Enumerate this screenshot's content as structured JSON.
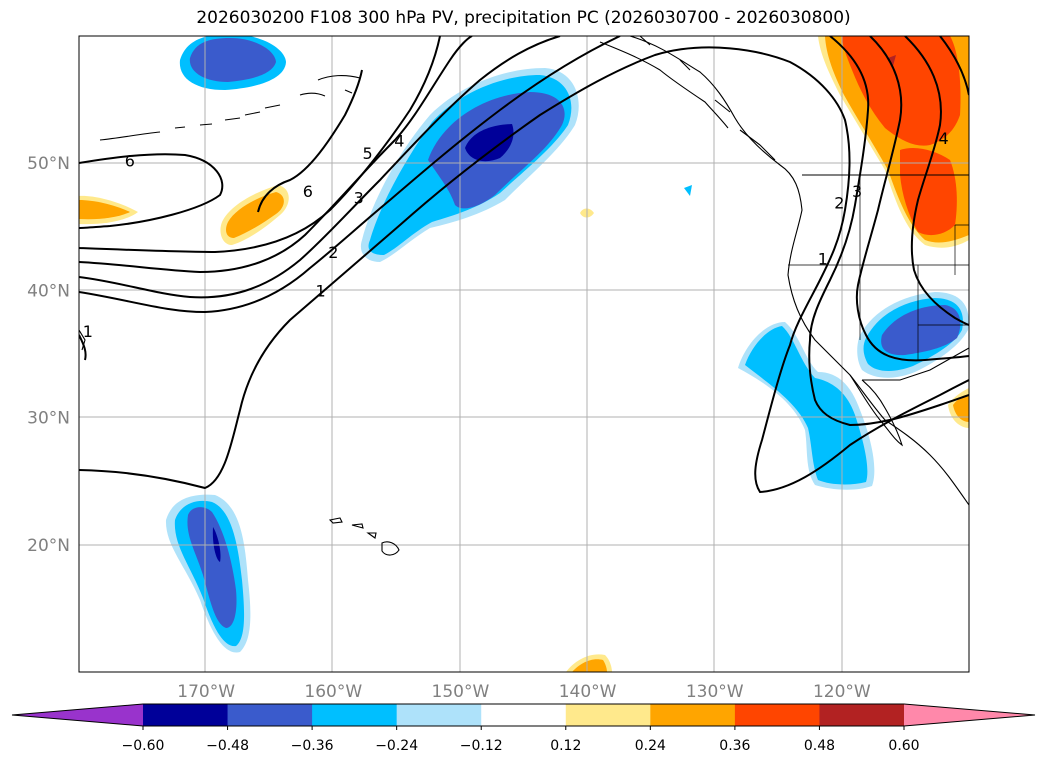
{
  "title": "2026030200 F108 300 hPa PV, precipitation PC (2026030700 - 2026030800)",
  "map": {
    "lon_range": [
      -180,
      -110
    ],
    "lat_range": [
      10,
      60
    ],
    "lon_labels": [
      "170°W",
      "160°W",
      "150°W",
      "140°W",
      "130°W",
      "120°W"
    ],
    "lat_labels": [
      "50°N",
      "40°N",
      "30°N",
      "20°N"
    ],
    "gridlines": true
  },
  "pv_contour_labels": [
    {
      "text": "6",
      "lon": -176,
      "lat": 50.2
    },
    {
      "text": "6",
      "lon": -162,
      "lat": 47.8
    },
    {
      "text": "5",
      "lon": -157.3,
      "lat": 50.8
    },
    {
      "text": "4",
      "lon": -154.8,
      "lat": 51.8
    },
    {
      "text": "3",
      "lon": -158,
      "lat": 47.3
    },
    {
      "text": "2",
      "lon": -160,
      "lat": 43
    },
    {
      "text": "1",
      "lon": -161,
      "lat": 40
    },
    {
      "text": "1",
      "lon": -179.3,
      "lat": 36.8
    },
    {
      "text": "1",
      "lon": -121.5,
      "lat": 42.5
    },
    {
      "text": "2",
      "lon": -120.2,
      "lat": 46.9
    },
    {
      "text": "3",
      "lon": -118.8,
      "lat": 47.8
    },
    {
      "text": "4",
      "lon": -112,
      "lat": 52
    }
  ],
  "colorbar": {
    "ticks": [
      "−0.60",
      "−0.48",
      "−0.36",
      "−0.24",
      "−0.12",
      "0.12",
      "0.24",
      "0.36",
      "0.48",
      "0.60"
    ],
    "colors": [
      "#9933cc",
      "#000099",
      "#3a5bcc",
      "#00bfff",
      "#aee2fa",
      "#ffffff",
      "#ffe98c",
      "#ffa500",
      "#ff4500",
      "#b22222",
      "#ff88aa"
    ]
  },
  "shading_colors": {
    "neg1": "#aee2fa",
    "neg2": "#00bfff",
    "neg3": "#3a5bcc",
    "neg4": "#000099",
    "pos1": "#ffe98c",
    "pos2": "#ffa500",
    "pos3": "#ff4500",
    "pos4": "#b22222"
  }
}
